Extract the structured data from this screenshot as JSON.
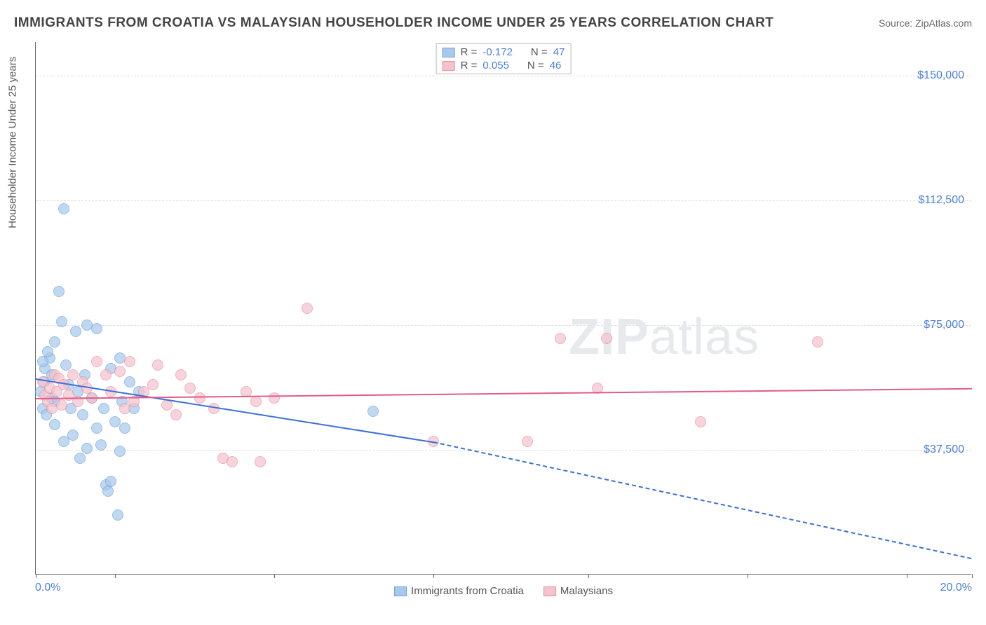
{
  "title": "IMMIGRANTS FROM CROATIA VS MALAYSIAN HOUSEHOLDER INCOME UNDER 25 YEARS CORRELATION CHART",
  "source": "Source: ZipAtlas.com",
  "watermark_a": "ZIP",
  "watermark_b": "atlas",
  "chart": {
    "type": "scatter-correlation",
    "y_axis_title": "Householder Income Under 25 years",
    "xlim": [
      0,
      20
    ],
    "ylim": [
      0,
      160000
    ],
    "x_min_label": "0.0%",
    "x_max_label": "20.0%",
    "x_tick_positions_pct": [
      0,
      8.5,
      25.5,
      42.5,
      59,
      76,
      93,
      100
    ],
    "y_gridlines": [
      {
        "value": 37500,
        "label": "$37,500"
      },
      {
        "value": 75000,
        "label": "$75,000"
      },
      {
        "value": 112500,
        "label": "$112,500"
      },
      {
        "value": 150000,
        "label": "$150,000"
      }
    ],
    "background_color": "#ffffff",
    "grid_color": "#dddddd",
    "axis_color": "#666666",
    "label_color": "#4a7fd8",
    "series": [
      {
        "name": "Immigrants from Croatia",
        "fill": "#a8c8ec",
        "stroke": "#6fa3de",
        "line_color": "#3b6fd6",
        "marker_radius": 8,
        "opacity": 0.7,
        "R": "-0.172",
        "N": "47",
        "trend": {
          "x1": 0,
          "y1": 59000,
          "x2": 8.5,
          "y2": 40000,
          "solid": true
        },
        "trend_ext": {
          "x1": 8.5,
          "y1": 40000,
          "x2": 20,
          "y2": 5000,
          "solid": false
        },
        "points": [
          [
            0.1,
            55000
          ],
          [
            0.18,
            58000
          ],
          [
            0.15,
            50000
          ],
          [
            0.2,
            62000
          ],
          [
            0.22,
            48000
          ],
          [
            0.3,
            65000
          ],
          [
            0.35,
            60000
          ],
          [
            0.35,
            53000
          ],
          [
            0.4,
            70000
          ],
          [
            0.4,
            45000
          ],
          [
            0.5,
            85000
          ],
          [
            0.55,
            76000
          ],
          [
            0.6,
            110000
          ],
          [
            0.6,
            40000
          ],
          [
            0.65,
            63000
          ],
          [
            0.7,
            57000
          ],
          [
            0.75,
            50000
          ],
          [
            0.8,
            42000
          ],
          [
            0.85,
            73000
          ],
          [
            0.9,
            55000
          ],
          [
            0.95,
            35000
          ],
          [
            1.0,
            48000
          ],
          [
            1.05,
            60000
          ],
          [
            1.1,
            38000
          ],
          [
            1.1,
            75000
          ],
          [
            1.2,
            53000
          ],
          [
            1.3,
            44000
          ],
          [
            1.3,
            74000
          ],
          [
            1.4,
            39000
          ],
          [
            1.45,
            50000
          ],
          [
            1.5,
            27000
          ],
          [
            1.55,
            25000
          ],
          [
            1.6,
            62000
          ],
          [
            1.6,
            28000
          ],
          [
            1.7,
            46000
          ],
          [
            1.75,
            18000
          ],
          [
            1.8,
            65000
          ],
          [
            1.85,
            52000
          ],
          [
            1.8,
            37000
          ],
          [
            1.9,
            44000
          ],
          [
            2.0,
            58000
          ],
          [
            2.1,
            50000
          ],
          [
            2.2,
            55000
          ],
          [
            0.25,
            67000
          ],
          [
            0.4,
            52000
          ],
          [
            0.15,
            64000
          ],
          [
            7.2,
            49000
          ]
        ]
      },
      {
        "name": "Malaysians",
        "fill": "#f5c3cd",
        "stroke": "#e88fa3",
        "line_color": "#e05c87",
        "marker_radius": 8,
        "opacity": 0.7,
        "R": "0.055",
        "N": "46",
        "trend": {
          "x1": 0,
          "y1": 53000,
          "x2": 20,
          "y2": 56000,
          "solid": true
        },
        "points": [
          [
            0.15,
            58000
          ],
          [
            0.2,
            54000
          ],
          [
            0.25,
            52000
          ],
          [
            0.3,
            56000
          ],
          [
            0.4,
            60000
          ],
          [
            0.45,
            55000
          ],
          [
            0.5,
            59000
          ],
          [
            0.55,
            51000
          ],
          [
            0.6,
            57000
          ],
          [
            0.7,
            54000
          ],
          [
            0.8,
            60000
          ],
          [
            0.9,
            52000
          ],
          [
            1.0,
            58000
          ],
          [
            1.1,
            56000
          ],
          [
            1.2,
            53000
          ],
          [
            1.3,
            64000
          ],
          [
            1.5,
            60000
          ],
          [
            1.6,
            55000
          ],
          [
            1.8,
            61000
          ],
          [
            1.9,
            50000
          ],
          [
            2.0,
            64000
          ],
          [
            2.1,
            52000
          ],
          [
            2.3,
            55000
          ],
          [
            2.5,
            57000
          ],
          [
            2.6,
            63000
          ],
          [
            2.8,
            51000
          ],
          [
            3.0,
            48000
          ],
          [
            3.1,
            60000
          ],
          [
            3.3,
            56000
          ],
          [
            3.5,
            53000
          ],
          [
            3.8,
            50000
          ],
          [
            4.0,
            35000
          ],
          [
            4.2,
            34000
          ],
          [
            4.5,
            55000
          ],
          [
            4.7,
            52000
          ],
          [
            4.8,
            34000
          ],
          [
            5.1,
            53000
          ],
          [
            5.8,
            80000
          ],
          [
            8.5,
            40000
          ],
          [
            10.5,
            40000
          ],
          [
            11.2,
            71000
          ],
          [
            12.0,
            56000
          ],
          [
            12.2,
            71000
          ],
          [
            14.2,
            46000
          ],
          [
            16.7,
            70000
          ],
          [
            0.35,
            50000
          ]
        ]
      }
    ],
    "bottom_legend": [
      {
        "label": "Immigrants from Croatia",
        "fill": "#a8c8ec",
        "stroke": "#6fa3de"
      },
      {
        "label": "Malaysians",
        "fill": "#f5c3cd",
        "stroke": "#e88fa3"
      }
    ]
  }
}
